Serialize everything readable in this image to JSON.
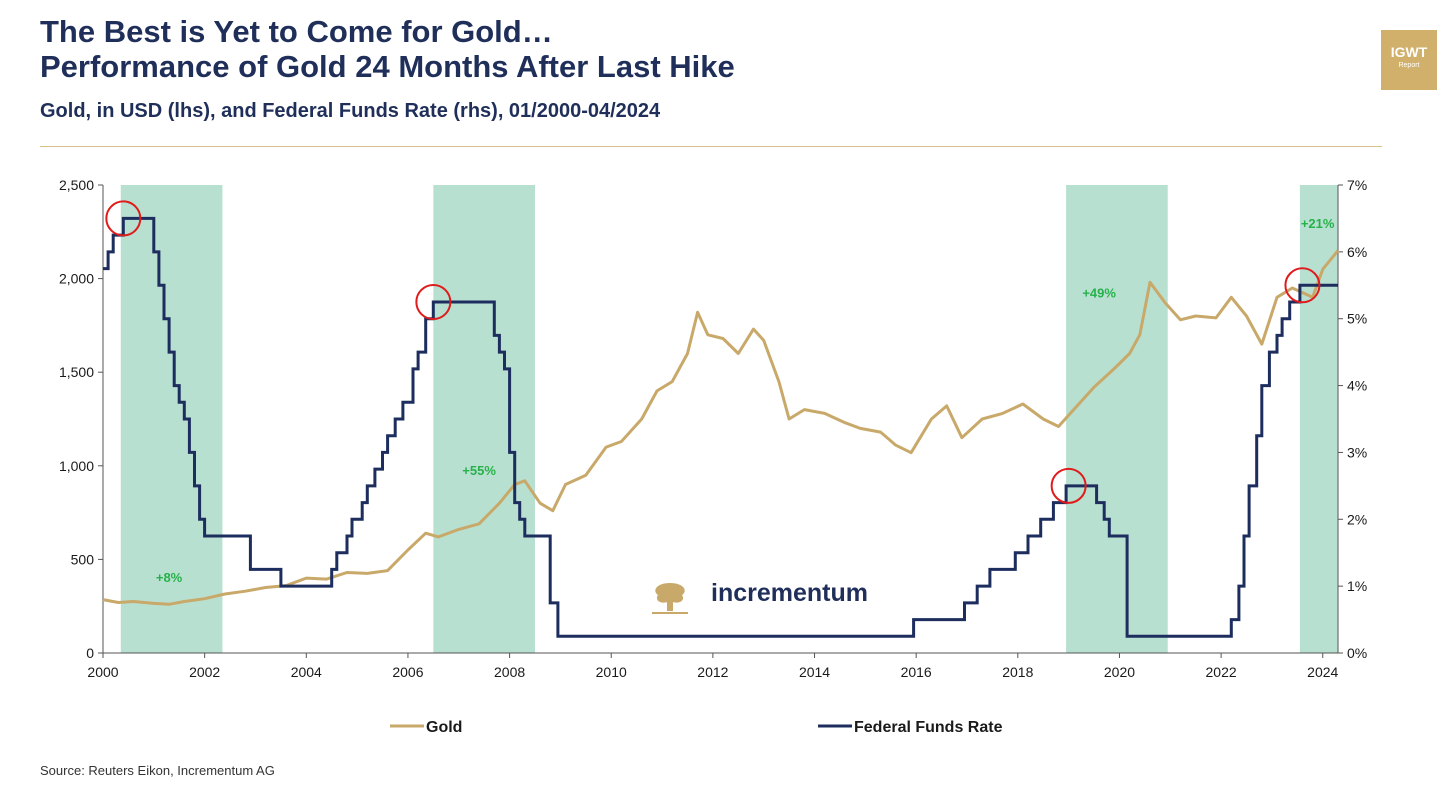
{
  "header": {
    "title_line1": "The Best is Yet to Come for Gold…",
    "title_line2": "Performance of Gold 24 Months After Last Hike",
    "subtitle": "Gold, in USD (lhs), and Federal Funds Rate (rhs), 01/2000-04/2024"
  },
  "badge": {
    "line1": "IGWT",
    "line2": "Report",
    "color": "#d0b06a"
  },
  "watermark": {
    "brand": "incrementum",
    "icon": "tree-logo-icon"
  },
  "source": "Source: Reuters Eikon, Incrementum AG",
  "chart_data": {
    "type": "line",
    "x_ticks": [
      "2000",
      "2002",
      "2004",
      "2006",
      "2008",
      "2010",
      "2012",
      "2014",
      "2016",
      "2018",
      "2020",
      "2022",
      "2024"
    ],
    "xlim": [
      2000,
      2024.3
    ],
    "y_left_ticks": [
      "0",
      "500",
      "1,000",
      "1,500",
      "2,000",
      "2,500"
    ],
    "ylim_left": [
      0,
      2500
    ],
    "y_right_ticks": [
      "0%",
      "1%",
      "2%",
      "3%",
      "4%",
      "5%",
      "6%",
      "7%"
    ],
    "ylim_right": [
      0,
      7
    ],
    "shaded_periods": [
      [
        2000.35,
        2002.35
      ],
      [
        2006.5,
        2008.5
      ],
      [
        2018.95,
        2020.95
      ],
      [
        2023.55,
        2024.3
      ]
    ],
    "annotations": [
      {
        "text": "+8%",
        "x": 2001.3,
        "y": 380
      },
      {
        "text": "+55%",
        "x": 2007.4,
        "y": 950
      },
      {
        "text": "+49%",
        "x": 2019.6,
        "y": 1900
      },
      {
        "text": "+21%",
        "x": 2023.9,
        "y": 2270
      }
    ],
    "last_hike_markers": [
      {
        "x": 2000.4,
        "rate": 6.5
      },
      {
        "x": 2006.5,
        "rate": 5.25
      },
      {
        "x": 2019.0,
        "rate": 2.5
      },
      {
        "x": 2023.6,
        "rate": 5.5
      }
    ],
    "series": [
      {
        "name": "Gold",
        "axis": "left",
        "color": "#c8a96a",
        "x": [
          2000,
          2000.3,
          2000.6,
          2001,
          2001.3,
          2001.6,
          2002,
          2002.4,
          2002.8,
          2003.2,
          2003.6,
          2004,
          2004.4,
          2004.8,
          2005.2,
          2005.6,
          2006,
          2006.35,
          2006.6,
          2007,
          2007.4,
          2007.8,
          2008.1,
          2008.3,
          2008.6,
          2008.85,
          2009.1,
          2009.5,
          2009.9,
          2010.2,
          2010.6,
          2010.9,
          2011.2,
          2011.5,
          2011.7,
          2011.9,
          2012.2,
          2012.5,
          2012.8,
          2013.0,
          2013.3,
          2013.5,
          2013.8,
          2014.2,
          2014.6,
          2014.9,
          2015.3,
          2015.6,
          2015.9,
          2016.3,
          2016.6,
          2016.9,
          2017.3,
          2017.7,
          2018.1,
          2018.5,
          2018.8,
          2019.1,
          2019.5,
          2019.9,
          2020.2,
          2020.4,
          2020.6,
          2020.9,
          2021.2,
          2021.5,
          2021.9,
          2022.2,
          2022.5,
          2022.8,
          2023.1,
          2023.4,
          2023.8,
          2024.0,
          2024.3
        ],
        "values": [
          285,
          270,
          275,
          265,
          260,
          275,
          290,
          315,
          330,
          350,
          360,
          400,
          395,
          430,
          425,
          440,
          550,
          640,
          620,
          660,
          690,
          800,
          900,
          920,
          800,
          760,
          900,
          950,
          1100,
          1130,
          1250,
          1400,
          1450,
          1600,
          1820,
          1700,
          1680,
          1600,
          1730,
          1670,
          1450,
          1250,
          1300,
          1280,
          1230,
          1200,
          1180,
          1110,
          1070,
          1250,
          1320,
          1150,
          1250,
          1280,
          1330,
          1250,
          1210,
          1300,
          1420,
          1520,
          1600,
          1700,
          1980,
          1870,
          1780,
          1800,
          1790,
          1900,
          1800,
          1650,
          1900,
          1950,
          1900,
          2050,
          2150
        ]
      },
      {
        "name": "Federal Funds Rate",
        "axis": "right",
        "color": "#1c2d5e",
        "x": [
          2000.0,
          2000.1,
          2000.2,
          2000.4,
          2001.0,
          2001.1,
          2001.2,
          2001.3,
          2001.4,
          2001.5,
          2001.6,
          2001.7,
          2001.8,
          2001.9,
          2002.0,
          2002.9,
          2003.5,
          2004.5,
          2004.6,
          2004.8,
          2004.9,
          2005.1,
          2005.2,
          2005.35,
          2005.5,
          2005.6,
          2005.75,
          2005.9,
          2006.1,
          2006.2,
          2006.35,
          2006.5,
          2007.7,
          2007.8,
          2007.9,
          2008.0,
          2008.1,
          2008.2,
          2008.3,
          2008.8,
          2008.95,
          2015.95,
          2016.95,
          2017.2,
          2017.45,
          2017.95,
          2018.2,
          2018.45,
          2018.7,
          2018.95,
          2019.55,
          2019.7,
          2019.8,
          2020.15,
          2020.2,
          2022.2,
          2022.35,
          2022.45,
          2022.55,
          2022.7,
          2022.8,
          2022.95,
          2023.1,
          2023.2,
          2023.35,
          2023.55,
          2024.3
        ],
        "values": [
          5.75,
          6.0,
          6.25,
          6.5,
          6.0,
          5.5,
          5.0,
          4.5,
          4.0,
          3.75,
          3.5,
          3.0,
          2.5,
          2.0,
          1.75,
          1.25,
          1.0,
          1.25,
          1.5,
          1.75,
          2.0,
          2.25,
          2.5,
          2.75,
          3.0,
          3.25,
          3.5,
          3.75,
          4.25,
          4.5,
          5.0,
          5.25,
          4.75,
          4.5,
          4.25,
          3.0,
          2.25,
          2.0,
          1.75,
          0.75,
          0.25,
          0.5,
          0.75,
          1.0,
          1.25,
          1.5,
          1.75,
          2.0,
          2.25,
          2.5,
          2.25,
          2.0,
          1.75,
          0.25,
          0.25,
          0.5,
          1.0,
          1.75,
          2.5,
          3.25,
          4.0,
          4.5,
          4.75,
          5.0,
          5.25,
          5.5,
          5.5
        ]
      }
    ],
    "legend": {
      "placement": "bottom"
    }
  }
}
